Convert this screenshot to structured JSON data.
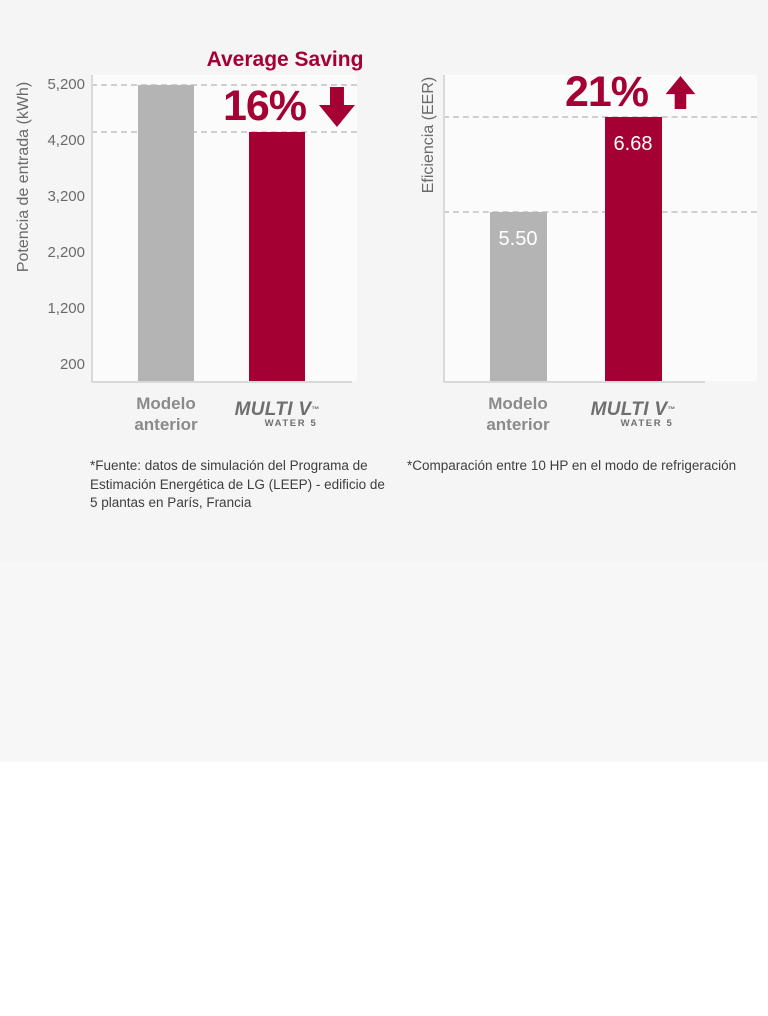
{
  "brand_logo": {
    "main": "MULTI V",
    "tm": "™",
    "sub": "WATER 5"
  },
  "chart_data": [
    {
      "type": "bar",
      "title": "Average Saving",
      "ylabel": "Potencia de entrada (kWh)",
      "xlabel": "",
      "categories": [
        "Modelo anterior",
        "MULTI V WATER 5"
      ],
      "category_render": [
        "text",
        "logo"
      ],
      "values": [
        5200,
        4368
      ],
      "bar_colors": [
        "#b4b4b4",
        "#a50034"
      ],
      "yticks": [
        5200,
        4200,
        3200,
        2200,
        1200,
        200
      ],
      "ytick_labels": [
        "5,200",
        "4,200",
        "3,200",
        "2,200",
        "1,200",
        "200"
      ],
      "ylim": [
        -90,
        5380
      ],
      "ref_lines": [
        5200,
        4368
      ],
      "grid": "dashed-reference-lines-at-bar-tops",
      "legend": "none",
      "annotation": {
        "text": "16%",
        "arrow": "down"
      },
      "footnote": "*Fuente: datos de simulación del Programa de Estimación Energética de LG (LEEP) - edificio de 5 plantas en París, Francia"
    },
    {
      "type": "bar",
      "title": "",
      "ylabel": "Eficiencia (EER)",
      "xlabel": "",
      "categories": [
        "Modelo anterior",
        "MULTI V WATER 5"
      ],
      "category_render": [
        "text",
        "logo"
      ],
      "values": [
        5.5,
        6.68
      ],
      "value_labels": [
        "5.50",
        "6.68"
      ],
      "bar_colors": [
        "#b4b4b4",
        "#a50034"
      ],
      "yticks": [],
      "ytick_labels": [],
      "ylim": [
        3.39,
        7.2
      ],
      "ref_lines": [
        5.5,
        6.68
      ],
      "grid": "dashed-reference-lines-at-bar-tops",
      "legend": "none",
      "annotation": {
        "text": "21%",
        "arrow": "up"
      },
      "footnote": "*Comparación entre 10 HP en el modo de refrigeración"
    }
  ],
  "colors": {
    "accent_red": "#a50034",
    "bar_gray": "#b4b4b4",
    "axis_line": "#d9d9d9",
    "grid_dash": "#cfcfcf",
    "tick_text": "#6b6b6b",
    "category_text": "#8a8a8a",
    "logo_gray": "#6f6f6f",
    "footnote_text": "#3e3e3e",
    "background_top": "#f5f5f5",
    "background_mid": "#f7f7f7",
    "plot_background": "#fbfbfb"
  }
}
